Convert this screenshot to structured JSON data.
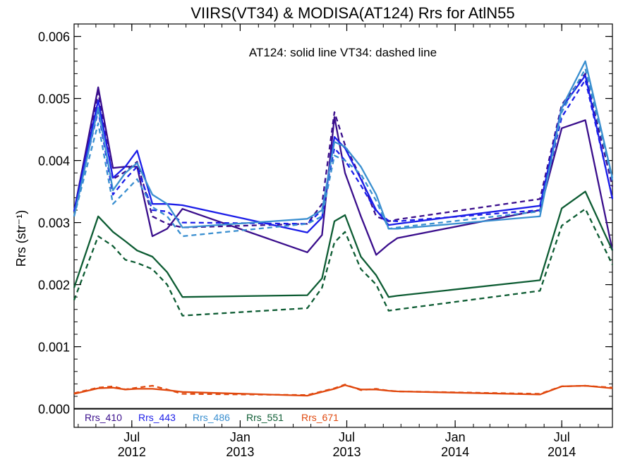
{
  "chart_data": {
    "type": "line",
    "title": "VIIRS(VT34) & MODISA(AT124)  Rrs for AtlN55",
    "annotation": "AT124: solid line   VT34: dashed line",
    "ylabel": "Rrs (str⁻¹)",
    "xlabel": "",
    "ylim": [
      -0.0003,
      0.0062
    ],
    "xlim": [
      "2012-03-25",
      "2014-09-25"
    ],
    "y_ticks": [
      "0.000",
      "0.001",
      "0.002",
      "0.003",
      "0.004",
      "0.005",
      "0.006"
    ],
    "y_tick_values": [
      0,
      0.001,
      0.002,
      0.003,
      0.004,
      0.005,
      0.006
    ],
    "x_ticks": [
      {
        "date": "2012-07-01",
        "month": "Jul",
        "year": "2012"
      },
      {
        "date": "2013-01-01",
        "month": "Jan",
        "year": "2013"
      },
      {
        "date": "2013-07-01",
        "month": "Jul",
        "year": "2013"
      },
      {
        "date": "2014-01-01",
        "month": "Jan",
        "year": "2014"
      },
      {
        "date": "2014-07-01",
        "month": "Jul",
        "year": "2014"
      }
    ],
    "zero_line": true,
    "grid": false,
    "legend_position": "bottom-left",
    "dates": [
      "2012-03-25",
      "2012-05-05",
      "2012-05-30",
      "2012-06-20",
      "2012-07-10",
      "2012-08-05",
      "2012-08-30",
      "2012-09-25",
      "2013-04-25",
      "2013-05-20",
      "2013-06-10",
      "2013-06-28",
      "2013-07-25",
      "2013-08-20",
      "2013-09-10",
      "2013-09-25",
      "2014-05-25",
      "2014-07-01",
      "2014-08-10",
      "2014-09-25"
    ],
    "series": [
      {
        "name": "Rrs_410",
        "color": "#3a0e8c",
        "solid": [
          0.00318,
          0.00518,
          0.00388,
          0.0039,
          0.0039,
          0.00278,
          0.0029,
          0.00322,
          0.00252,
          0.0028,
          0.0047,
          0.0038,
          0.0031,
          0.00248,
          0.00265,
          0.00275,
          0.0032,
          0.00452,
          0.00465,
          0.00255
        ],
        "dashed": [
          0.00318,
          0.0051,
          0.0037,
          0.00382,
          0.00398,
          0.0031,
          0.00298,
          0.00292,
          0.00298,
          0.0033,
          0.00478,
          0.00425,
          0.00372,
          0.0031,
          0.00302,
          0.00305,
          0.00338,
          0.0049,
          0.0054,
          0.00358
        ]
      },
      {
        "name": "Rrs_443",
        "color": "#1c1ee8",
        "solid": [
          0.00318,
          0.00497,
          0.00372,
          0.0039,
          0.00416,
          0.0033,
          0.0033,
          0.00328,
          0.00284,
          0.00308,
          0.00438,
          0.0042,
          0.0037,
          0.0032,
          0.00296,
          0.00298,
          0.00327,
          0.00485,
          0.00537,
          0.00338
        ],
        "dashed": [
          0.00318,
          0.0048,
          0.00345,
          0.0037,
          0.0039,
          0.0032,
          0.00318,
          0.003,
          0.00298,
          0.0032,
          0.0042,
          0.004,
          0.0036,
          0.00318,
          0.00303,
          0.00302,
          0.0032,
          0.0047,
          0.0053,
          0.0034
        ]
      },
      {
        "name": "Rrs_486",
        "color": "#3a8fd0",
        "solid": [
          0.0031,
          0.00485,
          0.00352,
          0.0038,
          0.00396,
          0.00345,
          0.0033,
          0.00292,
          0.00306,
          0.0032,
          0.0043,
          0.00422,
          0.0039,
          0.00345,
          0.0029,
          0.0029,
          0.0031,
          0.00485,
          0.0056,
          0.00372
        ],
        "dashed": [
          0.0031,
          0.0046,
          0.0033,
          0.0035,
          0.0037,
          0.00325,
          0.0031,
          0.00278,
          0.00298,
          0.0031,
          0.00408,
          0.004,
          0.00378,
          0.00335,
          0.0029,
          0.00292,
          0.00318,
          0.00478,
          0.00548,
          0.00368
        ]
      },
      {
        "name": "Rrs_551",
        "color": "#0d5c33",
        "solid": [
          0.00195,
          0.0031,
          0.00285,
          0.0027,
          0.00255,
          0.00245,
          0.0022,
          0.0018,
          0.00183,
          0.0021,
          0.00302,
          0.00312,
          0.00245,
          0.00215,
          0.0018,
          0.00182,
          0.00207,
          0.00323,
          0.0035,
          0.00255
        ],
        "dashed": [
          0.00175,
          0.00278,
          0.00262,
          0.0024,
          0.00235,
          0.00225,
          0.002,
          0.0015,
          0.00162,
          0.00195,
          0.00268,
          0.00285,
          0.00225,
          0.002,
          0.00158,
          0.0016,
          0.0019,
          0.00295,
          0.00322,
          0.00232
        ]
      },
      {
        "name": "Rrs_671",
        "color": "#e0480e",
        "solid": [
          0.00024,
          0.00033,
          0.00034,
          0.00031,
          0.00032,
          0.00032,
          0.0003,
          0.00027,
          0.00021,
          0.00027,
          0.00032,
          0.00038,
          0.00031,
          0.00031,
          0.00029,
          0.00028,
          0.00023,
          0.00036,
          0.00037,
          0.00033
        ],
        "dashed": [
          0.00025,
          0.00034,
          0.00036,
          0.00031,
          0.00034,
          0.00037,
          0.00031,
          0.00024,
          0.00022,
          0.00028,
          0.00033,
          0.00039,
          0.0003,
          0.00032,
          0.00029,
          0.00028,
          0.00024,
          0.00036,
          0.00037,
          0.00034
        ]
      }
    ]
  }
}
